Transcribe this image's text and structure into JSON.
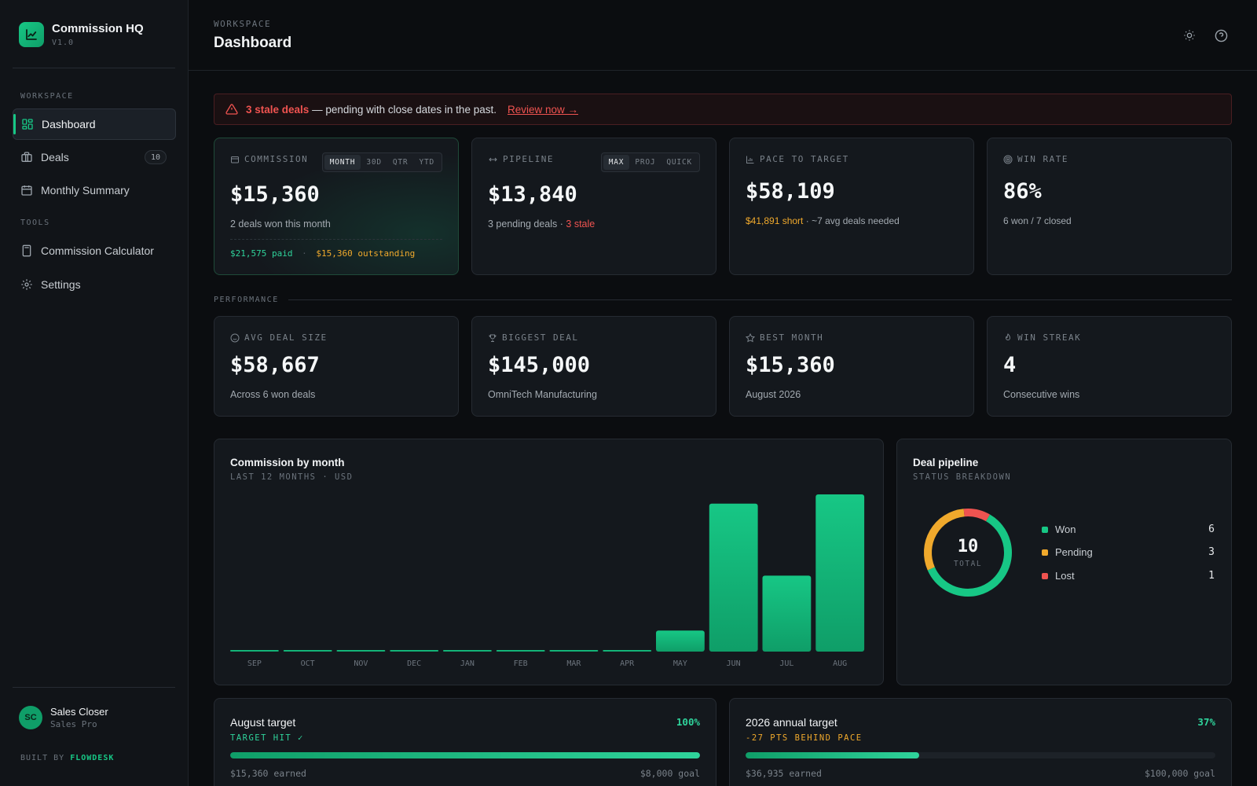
{
  "brand": {
    "name": "Commission HQ",
    "version": "V1.0"
  },
  "sidebar": {
    "workspace_label": "WORKSPACE",
    "tools_label": "TOOLS",
    "items": [
      {
        "label": "Dashboard",
        "icon": "grid-icon"
      },
      {
        "label": "Deals",
        "icon": "briefcase-icon",
        "badge": "10"
      },
      {
        "label": "Monthly Summary",
        "icon": "calendar-icon"
      },
      {
        "label": "Commission Calculator",
        "icon": "calculator-icon"
      },
      {
        "label": "Settings",
        "icon": "gear-icon"
      }
    ],
    "user": {
      "initials": "SC",
      "name": "Sales Closer",
      "role": "Sales Pro"
    },
    "built_by_prefix": "BUILT BY",
    "built_by_name": "FLOWDESK"
  },
  "header": {
    "eyebrow": "WORKSPACE",
    "title": "Dashboard"
  },
  "alert": {
    "strong": "3 stale deals",
    "text": "— pending with close dates in the past.",
    "link": "Review now →"
  },
  "kpis": {
    "commission": {
      "label": "COMMISSION",
      "tabs": [
        "MONTH",
        "30D",
        "QTR",
        "YTD"
      ],
      "active_tab": "MONTH",
      "value": "$15,360",
      "sub": "2 deals won this month",
      "paid": "$21,575 paid",
      "sep": "·",
      "outstanding": "$15,360 outstanding"
    },
    "pipeline": {
      "label": "PIPELINE",
      "tabs": [
        "MAX",
        "PROJ",
        "QUICK"
      ],
      "active_tab": "MAX",
      "value": "$13,840",
      "sub": "3 pending deals ·",
      "stale": "3 stale"
    },
    "pace": {
      "label": "PACE TO TARGET",
      "value": "$58,109",
      "short": "$41,891 short",
      "sub": "· ~7 avg deals needed"
    },
    "winrate": {
      "label": "WIN RATE",
      "value": "86%",
      "sub": "6 won / 7 closed"
    }
  },
  "performance": {
    "label": "PERFORMANCE",
    "cards": [
      {
        "label": "AVG DEAL SIZE",
        "value": "$58,667",
        "sub": "Across 6 won deals",
        "icon": "coin-icon"
      },
      {
        "label": "BIGGEST DEAL",
        "value": "$145,000",
        "sub": "OmniTech Manufacturing",
        "icon": "trophy-icon"
      },
      {
        "label": "BEST MONTH",
        "value": "$15,360",
        "sub": "August 2026",
        "icon": "star-icon"
      },
      {
        "label": "WIN STREAK",
        "value": "4",
        "sub": "Consecutive wins",
        "icon": "flame-icon"
      }
    ]
  },
  "chart_data": {
    "type": "bar",
    "title": "Commission by month",
    "subtitle": "LAST 12 MONTHS · USD",
    "categories": [
      "SEP",
      "OCT",
      "NOV",
      "DEC",
      "JAN",
      "FEB",
      "MAR",
      "APR",
      "MAY",
      "JUN",
      "JUL",
      "AUG"
    ],
    "values": [
      0,
      0,
      0,
      0,
      0,
      0,
      0,
      0,
      2050,
      14460,
      7420,
      15360
    ],
    "ylim": [
      0,
      15360
    ],
    "grid": false,
    "legend": "none",
    "bar_color": "#17c785"
  },
  "pipeline_panel": {
    "title": "Deal pipeline",
    "subtitle": "STATUS BREAKDOWN",
    "total": "10",
    "total_label": "TOTAL",
    "segments": [
      {
        "name": "Won",
        "count": "6",
        "color": "#17c785"
      },
      {
        "name": "Pending",
        "count": "3",
        "color": "#f0a92c"
      },
      {
        "name": "Lost",
        "count": "1",
        "color": "#ef5350"
      }
    ]
  },
  "targets": [
    {
      "title": "August target",
      "pct": "100%",
      "progress": 1.0,
      "status": "TARGET HIT ✓",
      "status_color": "#2fd39b",
      "earned": "$15,360 earned",
      "goal": "$8,000 goal"
    },
    {
      "title": "2026 annual target",
      "pct": "37%",
      "progress": 0.37,
      "status": "-27 PTS BEHIND PACE",
      "status_color": "#f0a92c",
      "earned": "$36,935 earned",
      "goal": "$100,000 goal"
    }
  ],
  "colors": {
    "accent": "#17c785",
    "warning": "#f0a92c",
    "danger": "#ef5350",
    "background": "#0b0d10"
  }
}
